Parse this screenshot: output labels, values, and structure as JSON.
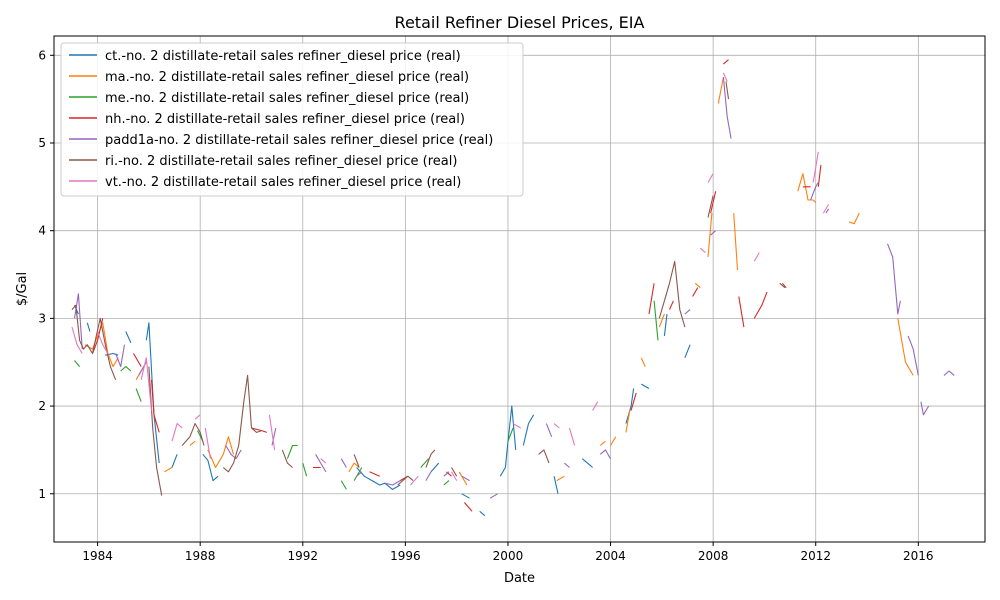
{
  "chart_data": {
    "type": "line",
    "title": "Retail Refiner Diesel Prices, EIA",
    "xlabel": "Date",
    "ylabel": "$/Gal",
    "xlim": [
      1982.3,
      2018.6
    ],
    "ylim": [
      0.45,
      6.22
    ],
    "x_ticks": [
      1984,
      1988,
      1992,
      1996,
      2000,
      2004,
      2008,
      2012,
      2016
    ],
    "y_ticks": [
      1,
      2,
      3,
      4,
      5,
      6
    ],
    "grid": true,
    "legend_position": "top-left",
    "series": [
      {
        "name": "ct.-no. 2 distillate-retail sales refiner_diesel price (real)",
        "color": "#1f77b4",
        "x": [
          1983.1,
          1983.25,
          null,
          1983.6,
          1983.7,
          null,
          1984.3,
          1984.6,
          1984.8,
          null,
          1985.1,
          1985.3,
          null,
          1985.9,
          1986.0,
          1986.2,
          1986.4,
          null,
          1986.9,
          1987.1,
          null,
          1988.1,
          1988.3,
          1988.5,
          1988.7,
          null,
          1994.1,
          1994.4,
          1994.7,
          1995.0,
          1995.2,
          1995.5,
          1995.8,
          null,
          1997.0,
          1997.3,
          null,
          1998.2,
          1998.5,
          null,
          1998.9,
          1999.1,
          null,
          1999.7,
          1999.9,
          2000.0,
          2000.15,
          2000.3,
          null,
          2000.6,
          2000.8,
          2001.0,
          null,
          2001.8,
          2001.95,
          null,
          2002.9,
          2003.1,
          2003.3,
          null,
          2004.6,
          2004.8,
          2004.9,
          null,
          2005.2,
          2005.5,
          null,
          2006.1,
          2006.2,
          null,
          2006.9,
          2007.1
        ],
        "y": [
          3.15,
          3.05,
          null,
          2.95,
          2.85,
          null,
          2.58,
          2.6,
          2.58,
          null,
          2.85,
          2.72,
          null,
          2.75,
          2.95,
          1.9,
          1.35,
          null,
          1.3,
          1.45,
          null,
          1.45,
          1.38,
          1.15,
          1.2,
          null,
          1.3,
          1.2,
          1.15,
          1.1,
          1.12,
          1.05,
          1.1,
          null,
          1.25,
          1.35,
          null,
          1.0,
          0.95,
          null,
          0.8,
          0.75,
          null,
          1.2,
          1.3,
          1.6,
          2.0,
          1.5,
          null,
          1.55,
          1.8,
          1.9,
          null,
          1.2,
          1.0,
          null,
          1.4,
          1.35,
          1.3,
          null,
          1.8,
          2.0,
          2.2,
          null,
          2.25,
          2.2,
          null,
          2.8,
          3.05,
          null,
          2.55,
          2.7
        ]
      },
      {
        "name": "ma.-no. 2 distillate-retail sales refiner_diesel price (real)",
        "color": "#ff7f0e",
        "x": [
          1983.5,
          1983.8,
          1984.0,
          1984.2,
          1984.4,
          1984.6,
          1984.8,
          null,
          1985.5,
          1985.8,
          null,
          1986.6,
          1986.9,
          null,
          1987.6,
          1987.8,
          null,
          1988.3,
          1988.6,
          1988.9,
          1989.1,
          1989.3,
          null,
          1993.8,
          1994.0,
          1994.2,
          null,
          1998.1,
          1998.4,
          null,
          2001.9,
          2002.2,
          null,
          2003.6,
          2003.8,
          null,
          2004.0,
          2004.2,
          null,
          2004.6,
          2004.75,
          null,
          2005.2,
          2005.35,
          null,
          2005.9,
          2006.1,
          null,
          2007.3,
          2007.5,
          null,
          2007.8,
          2007.95,
          null,
          2008.2,
          2008.4,
          null,
          2008.8,
          2008.95,
          null,
          2011.3,
          2011.5,
          2011.7,
          2011.9,
          2012.0,
          null,
          2013.3,
          2013.5,
          2013.7,
          null,
          2015.2,
          2015.5,
          2015.8
        ],
        "y": [
          2.7,
          2.65,
          2.8,
          2.95,
          2.6,
          2.45,
          2.55,
          null,
          2.3,
          2.45,
          null,
          1.25,
          1.3,
          null,
          1.55,
          1.6,
          null,
          1.5,
          1.3,
          1.45,
          1.65,
          1.45,
          null,
          1.25,
          1.35,
          1.3,
          null,
          1.25,
          1.1,
          null,
          1.15,
          1.2,
          null,
          1.55,
          1.6,
          null,
          1.55,
          1.65,
          null,
          1.7,
          1.95,
          null,
          2.55,
          2.45,
          null,
          2.9,
          3.05,
          null,
          3.4,
          3.35,
          null,
          3.7,
          4.2,
          null,
          5.45,
          5.75,
          null,
          4.2,
          3.55,
          null,
          4.45,
          4.65,
          4.35,
          4.35,
          4.32,
          null,
          4.1,
          4.08,
          4.2,
          null,
          3.0,
          2.5,
          2.35
        ]
      },
      {
        "name": "me.-no. 2 distillate-retail sales refiner_diesel price (real)",
        "color": "#2ca02c",
        "x": [
          1983.1,
          1983.3,
          null,
          1984.9,
          1985.1,
          1985.3,
          null,
          1985.5,
          1985.7,
          null,
          1987.9,
          1988.1,
          null,
          1991.4,
          1991.6,
          1991.8,
          null,
          1992.0,
          1992.15,
          null,
          1993.5,
          1993.7,
          null,
          1994.0,
          1994.3,
          null,
          1996.6,
          1996.9,
          null,
          1997.5,
          1997.7,
          null,
          2000.0,
          2000.2,
          null,
          2005.7,
          2005.85
        ],
        "y": [
          2.52,
          2.45,
          null,
          2.4,
          2.45,
          2.4,
          null,
          2.2,
          2.05,
          null,
          1.72,
          1.6,
          null,
          1.4,
          1.55,
          1.55,
          null,
          1.35,
          1.2,
          null,
          1.15,
          1.05,
          null,
          1.15,
          1.3,
          null,
          1.3,
          1.4,
          null,
          1.1,
          1.15,
          null,
          1.6,
          1.75,
          null,
          3.2,
          2.75
        ]
      },
      {
        "name": "nh.-no. 2 distillate-retail sales refiner_diesel price (real)",
        "color": "#d62728",
        "x": [
          1983.8,
          1984.0,
          1984.2,
          null,
          1985.4,
          1985.7,
          null,
          1986.1,
          1986.2,
          1986.4,
          null,
          1990.0,
          1990.4,
          1990.6,
          null,
          1992.4,
          1992.7,
          null,
          1994.6,
          1995.0,
          null,
          1995.8,
          1996.1,
          null,
          1997.6,
          1997.8,
          null,
          1998.3,
          1998.6,
          null,
          2004.8,
          2005.0,
          null,
          2005.5,
          2005.7,
          null,
          2006.3,
          2006.45,
          null,
          2007.2,
          2007.4,
          null,
          2007.9,
          2008.1,
          null,
          2008.4,
          2008.6,
          null,
          2009.0,
          2009.2,
          null,
          2009.6,
          2009.9,
          2010.1,
          null,
          2010.7,
          2010.85,
          null,
          2011.5,
          2011.8,
          null,
          2012.1,
          2012.2
        ],
        "y": [
          2.6,
          2.75,
          3.0,
          null,
          2.6,
          2.45,
          null,
          2.3,
          1.9,
          1.7,
          null,
          1.75,
          1.72,
          1.7,
          null,
          1.3,
          1.3,
          null,
          1.25,
          1.2,
          null,
          1.15,
          1.2,
          null,
          1.25,
          1.2,
          null,
          0.9,
          0.8,
          null,
          1.95,
          2.15,
          null,
          3.05,
          3.4,
          null,
          3.1,
          3.2,
          null,
          3.25,
          3.35,
          null,
          4.2,
          4.45,
          null,
          5.9,
          5.95,
          null,
          3.25,
          2.9,
          null,
          3.0,
          3.15,
          3.3,
          null,
          3.4,
          3.35,
          null,
          4.5,
          4.5,
          null,
          4.5,
          4.75
        ]
      },
      {
        "name": "padd1a-no. 2 distillate-retail sales refiner_diesel price (real)",
        "color": "#9467bd",
        "x": [
          1983.1,
          1983.25,
          1983.4,
          null,
          1984.7,
          1984.9,
          1985.05,
          null,
          1985.6,
          1985.9,
          null,
          1989.0,
          1989.2,
          1989.4,
          1989.6,
          null,
          1990.8,
          1990.95,
          null,
          1992.5,
          1992.7,
          1992.9,
          null,
          1993.5,
          1993.7,
          null,
          1994.1,
          1994.3,
          null,
          1995.2,
          1995.5,
          1995.8,
          null,
          1996.8,
          1997.0,
          null,
          1997.5,
          1997.7,
          null,
          1998.2,
          1998.5,
          null,
          1999.3,
          1999.6,
          null,
          2001.5,
          2001.7,
          null,
          2002.2,
          2002.4,
          null,
          2003.6,
          2003.8,
          2004.0,
          null,
          2006.9,
          2007.1,
          null,
          2007.9,
          2008.1,
          null,
          2008.4,
          2008.55,
          2008.7,
          null,
          2011.8,
          2012.0,
          2012.1,
          null,
          2012.4,
          2012.5,
          null,
          2014.8,
          2015.0,
          2015.2,
          2015.3,
          null,
          2015.6,
          2015.8,
          2016.0,
          null,
          2016.1,
          2016.2,
          2016.4,
          null,
          2017.0,
          2017.2,
          2017.4
        ],
        "y": [
          3.0,
          3.28,
          2.65,
          null,
          2.6,
          2.45,
          2.7,
          null,
          2.35,
          2.5,
          null,
          1.55,
          1.45,
          1.4,
          1.5,
          null,
          1.55,
          1.75,
          null,
          1.45,
          1.35,
          1.25,
          null,
          1.4,
          1.3,
          null,
          1.2,
          1.25,
          null,
          1.12,
          1.1,
          1.15,
          null,
          1.15,
          1.25,
          null,
          1.2,
          1.25,
          null,
          1.2,
          1.15,
          null,
          0.95,
          1.0,
          null,
          1.8,
          1.65,
          null,
          1.35,
          1.3,
          null,
          1.45,
          1.5,
          1.4,
          null,
          3.05,
          3.1,
          null,
          3.95,
          4.0,
          null,
          5.75,
          5.3,
          5.05,
          null,
          4.35,
          4.5,
          4.55,
          null,
          4.2,
          4.25,
          null,
          3.85,
          3.7,
          3.05,
          3.2,
          null,
          2.8,
          2.65,
          2.35,
          null,
          2.05,
          1.9,
          2.0,
          null,
          2.35,
          2.4,
          2.35
        ]
      },
      {
        "name": "ri.-no. 2 distillate-retail sales refiner_diesel price (real)",
        "color": "#8c564b",
        "x": [
          1983.0,
          1983.15,
          1983.3,
          1983.45,
          1983.6,
          1983.8,
          1983.95,
          1984.1,
          1984.3,
          1984.5,
          1984.7,
          null,
          1986.0,
          1986.15,
          1986.3,
          1986.5,
          null,
          1987.3,
          1987.6,
          1987.8,
          1988.0,
          1988.15,
          null,
          1988.9,
          1989.1,
          1989.3,
          1989.5,
          1989.7,
          1989.85,
          1990.0,
          1990.2,
          1990.4,
          null,
          1991.2,
          1991.4,
          1991.6,
          null,
          1994.0,
          1994.2,
          null,
          1995.7,
          1995.9,
          1996.1,
          1996.3,
          null,
          1996.8,
          1997.0,
          1997.15,
          null,
          1997.8,
          1998.0,
          null,
          2001.2,
          2001.4,
          2001.6,
          null,
          2005.9,
          2006.1,
          2006.3,
          2006.5,
          2006.7,
          2006.9,
          null,
          2007.8,
          2008.0,
          null,
          2008.5,
          2008.6,
          null,
          2010.6,
          2010.8
        ],
        "y": [
          3.1,
          3.15,
          2.75,
          2.65,
          2.7,
          2.6,
          2.8,
          3.0,
          2.7,
          2.45,
          2.3,
          null,
          2.45,
          1.75,
          1.3,
          0.98,
          null,
          1.55,
          1.65,
          1.8,
          1.7,
          1.55,
          null,
          1.3,
          1.25,
          1.35,
          1.55,
          2.05,
          2.35,
          1.75,
          1.7,
          1.72,
          null,
          1.5,
          1.35,
          1.3,
          null,
          1.45,
          1.3,
          null,
          1.1,
          1.15,
          1.2,
          1.15,
          null,
          1.3,
          1.45,
          1.5,
          null,
          1.3,
          1.2,
          null,
          1.45,
          1.5,
          1.35,
          null,
          3.0,
          3.2,
          3.4,
          3.65,
          3.1,
          2.9,
          null,
          4.15,
          4.4,
          null,
          5.7,
          5.5,
          null,
          3.4,
          3.35
        ]
      },
      {
        "name": "vt.-no. 2 distillate-retail sales refiner_diesel price (real)",
        "color": "#e377c2",
        "x": [
          1983.0,
          1983.2,
          1983.4,
          null,
          1984.0,
          1984.2,
          1984.4,
          null,
          1985.7,
          1985.9,
          1986.1,
          null,
          1986.9,
          1987.1,
          1987.3,
          null,
          1987.8,
          1988.0,
          null,
          1988.2,
          1988.4,
          null,
          1990.7,
          1990.9,
          null,
          1992.7,
          1992.9,
          null,
          1996.2,
          1996.5,
          null,
          1997.8,
          1998.0,
          null,
          2000.2,
          2000.5,
          null,
          2001.8,
          2002.0,
          null,
          2002.4,
          2002.6,
          null,
          2003.3,
          2003.5,
          null,
          2007.5,
          2007.7,
          null,
          2007.8,
          2008.0,
          null,
          2008.4,
          2008.55,
          null,
          2009.6,
          2009.8,
          null,
          2011.9,
          2012.1,
          null,
          2012.3,
          2012.5
        ],
        "y": [
          2.9,
          2.7,
          2.6,
          null,
          2.85,
          2.7,
          2.6,
          null,
          2.3,
          2.55,
          1.95,
          null,
          1.6,
          1.8,
          1.75,
          null,
          1.85,
          1.9,
          null,
          1.75,
          1.4,
          null,
          1.9,
          1.5,
          null,
          1.4,
          1.35,
          null,
          1.1,
          1.2,
          null,
          1.25,
          1.15,
          null,
          1.8,
          1.75,
          null,
          1.8,
          1.75,
          null,
          1.75,
          1.55,
          null,
          1.95,
          2.05,
          null,
          3.8,
          3.75,
          null,
          4.55,
          4.65,
          null,
          5.8,
          5.7,
          null,
          3.65,
          3.75,
          null,
          4.55,
          4.9,
          null,
          4.2,
          4.3
        ]
      }
    ]
  }
}
